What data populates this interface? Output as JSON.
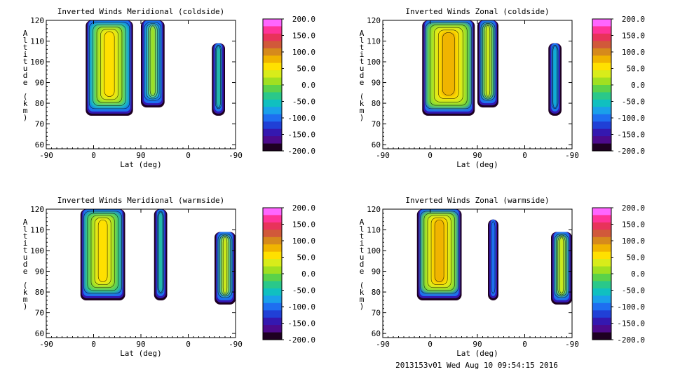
{
  "panels": [
    {
      "id": "meridional-cold",
      "title": "Inverted Winds Meridional (coldside)",
      "ylabel": "Altitude (km)",
      "xlabel": "Lat (deg)",
      "x_ticks": [
        "-90",
        "0",
        "90",
        "0",
        "-90"
      ],
      "y_ticks": [
        "60",
        "70",
        "80",
        "90",
        "100",
        "110",
        "120"
      ]
    },
    {
      "id": "zonal-cold",
      "title": "Inverted Winds Zonal (coldside)",
      "ylabel": "Altitude (km)",
      "xlabel": "Lat (deg)",
      "x_ticks": [
        "-90",
        "0",
        "90",
        "0",
        "-90"
      ],
      "y_ticks": [
        "60",
        "70",
        "80",
        "90",
        "100",
        "110",
        "120"
      ]
    },
    {
      "id": "meridional-warm",
      "title": "Inverted Winds Meridional (warmside)",
      "ylabel": "Altitude (km)",
      "xlabel": "Lat (deg)",
      "x_ticks": [
        "-90",
        "0",
        "90",
        "0",
        "-90"
      ],
      "y_ticks": [
        "60",
        "70",
        "80",
        "90",
        "100",
        "110",
        "120"
      ]
    },
    {
      "id": "zonal-warm",
      "title": "Inverted Winds Zonal (warmside)",
      "ylabel": "Altitude (km)",
      "xlabel": "Lat (deg)",
      "x_ticks": [
        "-90",
        "0",
        "90",
        "0",
        "-90"
      ],
      "y_ticks": [
        "60",
        "70",
        "80",
        "90",
        "100",
        "110",
        "120"
      ]
    }
  ],
  "colorbar": {
    "labels": [
      "200.0",
      "150.0",
      "100.0",
      "50.0",
      "0.0",
      "-50.0",
      "-100.0",
      "-150.0",
      "-200.0"
    ],
    "colors": [
      "#ff66ff",
      "#ff3399",
      "#e8335a",
      "#d1593a",
      "#d68a1c",
      "#f0b400",
      "#ffe000",
      "#d8ec1a",
      "#a0e020",
      "#5ad24a",
      "#2ac88a",
      "#10c0c0",
      "#1aa0ea",
      "#1e6ef0",
      "#2040d6",
      "#3418b0",
      "#4c0a8c",
      "#1e0022"
    ]
  },
  "footer": "2013153v01 Wed Aug 10 09:54:15 2016",
  "chart_data": [
    {
      "type": "heatmap",
      "title": "Inverted Winds Meridional (coldside)",
      "xlabel": "Lat (deg)",
      "ylabel": "Altitude (km)",
      "ylim": [
        58,
        120
      ],
      "x_ticks": [
        "-90",
        "0",
        "90",
        "0",
        "-90"
      ],
      "zlim": [
        -200,
        200
      ],
      "regions": [
        {
          "lat_range": [
            -15,
            75
          ],
          "alt_range": [
            76,
            120
          ],
          "approx_value": 10
        },
        {
          "lat_range": [
            90,
            135
          ],
          "alt_range": [
            80,
            120
          ],
          "approx_value": -20
        },
        {
          "lat_range": [
            225,
            250
          ],
          "alt_range": [
            76,
            109
          ],
          "approx_value": 0
        }
      ]
    },
    {
      "type": "heatmap",
      "title": "Inverted Winds Zonal (coldside)",
      "xlabel": "Lat (deg)",
      "ylabel": "Altitude (km)",
      "ylim": [
        58,
        120
      ],
      "x_ticks": [
        "-90",
        "0",
        "90",
        "0",
        "-90"
      ],
      "zlim": [
        -200,
        200
      ],
      "regions": [
        {
          "lat_range": [
            -15,
            85
          ],
          "alt_range": [
            76,
            120
          ],
          "approx_value": 40
        },
        {
          "lat_range": [
            90,
            130
          ],
          "alt_range": [
            80,
            120
          ],
          "approx_value": 20
        },
        {
          "lat_range": [
            225,
            250
          ],
          "alt_range": [
            76,
            109
          ],
          "approx_value": -20
        }
      ]
    },
    {
      "type": "heatmap",
      "title": "Inverted Winds Meridional (warmside)",
      "xlabel": "Lat (deg)",
      "ylabel": "Altitude (km)",
      "ylim": [
        58,
        120
      ],
      "x_ticks": [
        "-90",
        "0",
        "90",
        "0",
        "-90"
      ],
      "zlim": [
        -200,
        200
      ],
      "regions": [
        {
          "lat_range": [
            -25,
            60
          ],
          "alt_range": [
            78,
            120
          ],
          "approx_value": 20
        },
        {
          "lat_range": [
            115,
            140
          ],
          "alt_range": [
            78,
            120
          ],
          "approx_value": -10
        },
        {
          "lat_range": [
            230,
            270
          ],
          "alt_range": [
            76,
            109
          ],
          "approx_value": 10
        }
      ]
    },
    {
      "type": "heatmap",
      "title": "Inverted Winds Zonal (warmside)",
      "xlabel": "Lat (deg)",
      "ylabel": "Altitude (km)",
      "ylim": [
        58,
        120
      ],
      "x_ticks": [
        "-90",
        "0",
        "90",
        "0",
        "-90"
      ],
      "zlim": [
        -200,
        200
      ],
      "regions": [
        {
          "lat_range": [
            -25,
            60
          ],
          "alt_range": [
            78,
            120
          ],
          "approx_value": 40
        },
        {
          "lat_range": [
            110,
            130
          ],
          "alt_range": [
            78,
            115
          ],
          "approx_value": -60
        },
        {
          "lat_range": [
            230,
            270
          ],
          "alt_range": [
            76,
            109
          ],
          "approx_value": 20
        }
      ]
    }
  ]
}
